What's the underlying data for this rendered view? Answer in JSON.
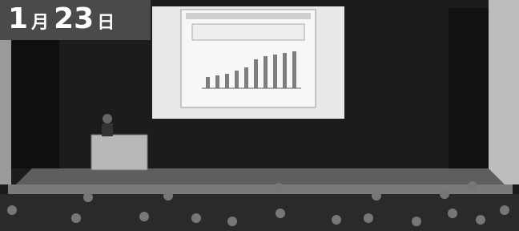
{
  "badge": {
    "month": "1",
    "month_unit": "月",
    "day": "23",
    "day_unit": "日"
  }
}
